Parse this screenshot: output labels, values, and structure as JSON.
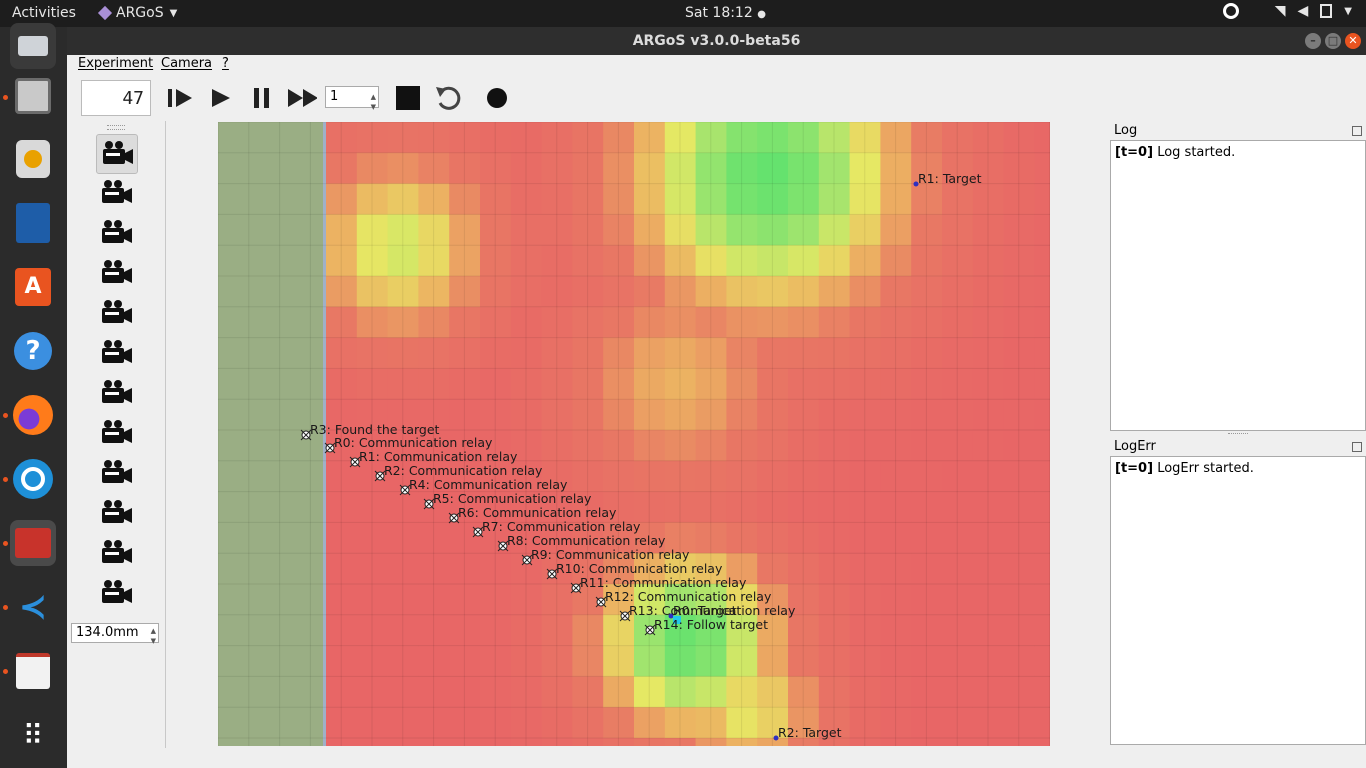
{
  "topbar": {
    "activities": "Activities",
    "app_name": "ARGoS",
    "clock": "Sat 18:12"
  },
  "window": {
    "title": "ARGoS v3.0.0-beta56"
  },
  "menu": {
    "experiment": "Experiment",
    "camera": "Camera",
    "help": "?"
  },
  "toolbar": {
    "step_counter": "47",
    "step_size": "1"
  },
  "camera_panel": {
    "camera_count": 12,
    "zoom_value": "134.0mm"
  },
  "arena": {
    "labels": [
      {
        "id": "R1-target",
        "text": "R1: Target"
      },
      {
        "id": "R3",
        "text": "R3: Found the target"
      },
      {
        "id": "R0",
        "text": "R0: Communication relay"
      },
      {
        "id": "R1",
        "text": "R1: Communication relay"
      },
      {
        "id": "R2",
        "text": "R2: Communication relay"
      },
      {
        "id": "R4",
        "text": "R4: Communication relay"
      },
      {
        "id": "R5",
        "text": "R5: Communication relay"
      },
      {
        "id": "R6",
        "text": "R6: Communication relay"
      },
      {
        "id": "R7",
        "text": "R7: Communication relay"
      },
      {
        "id": "R8",
        "text": "R8: Communication relay"
      },
      {
        "id": "R9",
        "text": "R9: Communication relay"
      },
      {
        "id": "R10",
        "text": "R10: Communication relay"
      },
      {
        "id": "R11",
        "text": "R11: Communication relay"
      },
      {
        "id": "R12",
        "text": "R12: Communication relay"
      },
      {
        "id": "R13",
        "text": "R13: Communication relay"
      },
      {
        "id": "R0-target",
        "text": "R0: Target"
      },
      {
        "id": "R14",
        "text": "R14: Follow target"
      },
      {
        "id": "R2-target",
        "text": "R2: Target"
      }
    ]
  },
  "log": {
    "title": "Log",
    "time": "[t=0]",
    "message": "Log started."
  },
  "logerr": {
    "title": "LogErr",
    "time": "[t=0]",
    "message": "LogErr started."
  }
}
